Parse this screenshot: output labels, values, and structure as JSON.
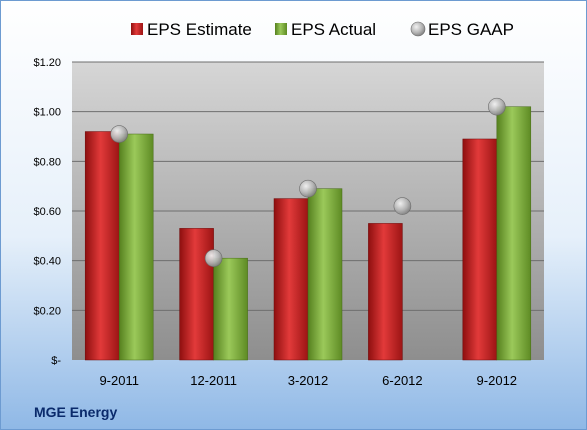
{
  "company": "MGE Energy",
  "chart_data": {
    "type": "bar",
    "categories": [
      "9-2011",
      "12-2011",
      "3-2012",
      "6-2012",
      "9-2012"
    ],
    "series": [
      {
        "name": "EPS Estimate",
        "kind": "bar",
        "color": "#cc1f1f",
        "values": [
          0.92,
          0.53,
          0.65,
          0.55,
          0.89
        ]
      },
      {
        "name": "EPS Actual",
        "kind": "bar",
        "color": "#78a832",
        "values": [
          0.91,
          0.41,
          0.69,
          null,
          1.02
        ]
      },
      {
        "name": "EPS GAAP",
        "kind": "marker",
        "color": "#a8a8a8",
        "values": [
          0.91,
          0.41,
          0.69,
          0.62,
          1.02
        ]
      }
    ],
    "y_ticks": [
      {
        "value": 0,
        "label": "$-"
      },
      {
        "value": 0.2,
        "label": "$0.20"
      },
      {
        "value": 0.4,
        "label": "$0.40"
      },
      {
        "value": 0.6,
        "label": "$0.60"
      },
      {
        "value": 0.8,
        "label": "$0.80"
      },
      {
        "value": 1.0,
        "label": "$1.00"
      },
      {
        "value": 1.2,
        "label": "$1.20"
      }
    ],
    "ylim": [
      0,
      1.2
    ],
    "grid": true,
    "legend_position": "top"
  }
}
